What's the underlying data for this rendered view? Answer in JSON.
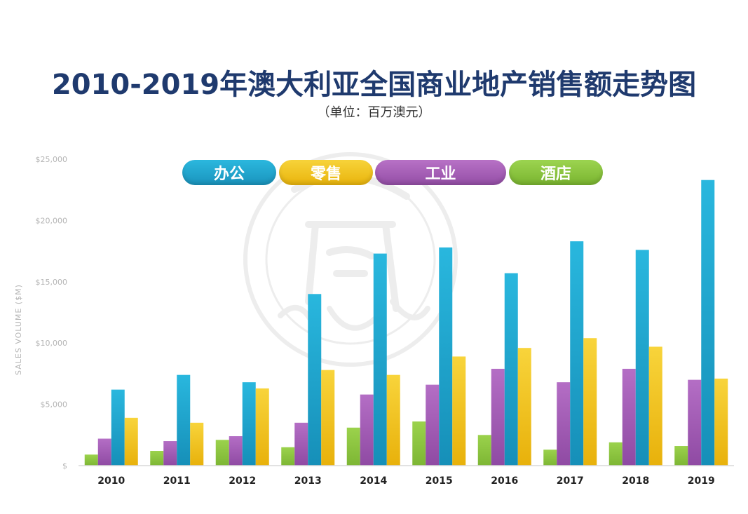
{
  "title": "2010-2019年澳大利亚全国商业地产销售额走势图",
  "subtitle": "（单位：百万澳元）",
  "legend": {
    "office": "办公",
    "retail": "零售",
    "industrial": "工业",
    "hotel": "酒店"
  },
  "colors": {
    "hotel": "#8cc63f",
    "industrial": "#a05bb0",
    "office": "#1ea8cf",
    "retail": "#f2c318",
    "title": "#1f3a6e"
  },
  "chart_data": {
    "type": "bar",
    "title": "2010-2019年澳大利亚全国商业地产销售额走势图",
    "subtitle": "（单位：百万澳元）",
    "ylabel": "SALES VOLUME ($M)",
    "xlabel": "",
    "ylim": [
      0,
      25000
    ],
    "yticks": [
      "$",
      "$5,000",
      "$10,000",
      "$15,000",
      "$20,000",
      "$25,000"
    ],
    "ytick_values": [
      0,
      5000,
      10000,
      15000,
      20000,
      25000
    ],
    "grid": false,
    "legend_position": "top-center",
    "categories": [
      "2010",
      "2011",
      "2012",
      "2013",
      "2014",
      "2015",
      "2016",
      "2017",
      "2018",
      "2019"
    ],
    "series": [
      {
        "name": "酒店",
        "key": "hotel",
        "values": [
          900,
          1200,
          2100,
          1500,
          3100,
          3600,
          2500,
          1300,
          1900,
          1600
        ]
      },
      {
        "name": "工业",
        "key": "industrial",
        "values": [
          2200,
          2000,
          2400,
          3500,
          5800,
          6600,
          7900,
          6800,
          7900,
          7000
        ]
      },
      {
        "name": "办公",
        "key": "office",
        "values": [
          6200,
          7400,
          6800,
          14000,
          17300,
          17800,
          15700,
          18300,
          17600,
          23300
        ]
      },
      {
        "name": "零售",
        "key": "retail",
        "values": [
          3900,
          3500,
          6300,
          7800,
          7400,
          8900,
          9600,
          10400,
          9700,
          7100
        ]
      }
    ]
  }
}
